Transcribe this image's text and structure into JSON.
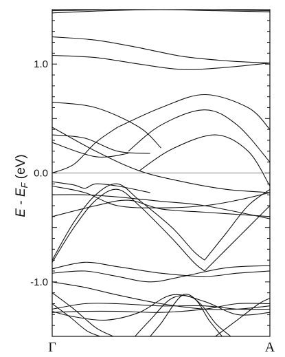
{
  "chart_data": {
    "type": "line",
    "ylabel_parts": {
      "E": "E",
      "minus": " - ",
      "EF_base": "E",
      "EF_sub": "F",
      "unit": " (eV)"
    },
    "xlim": [
      0,
      1
    ],
    "ylim": [
      -1.5,
      1.5
    ],
    "yticks": [
      {
        "value": 1.0,
        "label": "1.0"
      },
      {
        "value": 0.0,
        "label": "0.0"
      },
      {
        "value": -1.0,
        "label": "-1.0"
      }
    ],
    "xticks": [
      {
        "value": 0,
        "label": "Γ"
      },
      {
        "value": 1,
        "label": "A"
      }
    ],
    "fermi_level": 0.0,
    "series": [
      {
        "x": [
          0,
          0.25,
          0.5,
          0.75,
          1
        ],
        "y": [
          1.47,
          1.49,
          1.5,
          1.49,
          1.48
        ]
      },
      {
        "x": [
          0,
          0.25,
          0.5,
          0.75,
          1
        ],
        "y": [
          1.49,
          1.5,
          1.52,
          1.5,
          1.49
        ]
      },
      {
        "x": [
          0,
          0.2,
          0.4,
          0.6,
          0.8,
          1
        ],
        "y": [
          1.25,
          1.22,
          1.15,
          1.07,
          1.03,
          1.01
        ]
      },
      {
        "x": [
          0,
          0.2,
          0.4,
          0.6,
          0.8,
          1
        ],
        "y": [
          1.08,
          1.06,
          1.0,
          0.95,
          0.97,
          1.01
        ]
      },
      {
        "x": [
          0,
          0.2,
          0.4,
          0.5
        ],
        "y": [
          0.65,
          0.6,
          0.42,
          0.23
        ]
      },
      {
        "x": [
          0,
          0.2,
          0.4,
          0.6,
          0.8,
          1
        ],
        "y": [
          0.42,
          0.2,
          0.02,
          -0.08,
          -0.15,
          -0.18
        ]
      },
      {
        "x": [
          0,
          0.15,
          0.3,
          0.45
        ],
        "y": [
          0.35,
          0.32,
          0.2,
          0.18
        ]
      },
      {
        "x": [
          0,
          0.2,
          0.35
        ],
        "y": [
          0.28,
          0.15,
          0.18
        ]
      },
      {
        "x": [
          0,
          0.1,
          0.2,
          0.3
        ],
        "y": [
          0.0,
          0.08,
          0.28,
          0.42
        ]
      },
      {
        "x": [
          0.3,
          0.5,
          0.7,
          0.9,
          1
        ],
        "y": [
          0.42,
          0.6,
          0.72,
          0.6,
          0.4
        ]
      },
      {
        "x": [
          0.35,
          0.5,
          0.7,
          0.85,
          1
        ],
        "y": [
          0.2,
          0.44,
          0.58,
          0.44,
          0.1
        ]
      },
      {
        "x": [
          0.4,
          0.55,
          0.75,
          0.9,
          1
        ],
        "y": [
          0.02,
          0.22,
          0.35,
          0.2,
          -0.12
        ]
      },
      {
        "x": [
          0,
          0.1,
          0.15,
          0.2,
          0.3,
          0.45
        ],
        "y": [
          -0.08,
          -0.11,
          -0.14,
          -0.1,
          -0.12,
          -0.18
        ]
      },
      {
        "x": [
          0,
          0.15,
          0.3,
          0.5,
          0.7,
          0.85,
          1
        ],
        "y": [
          -0.12,
          -0.18,
          -0.3,
          -0.32,
          -0.3,
          -0.25,
          -0.18
        ]
      },
      {
        "x": [
          0,
          0.15,
          0.3,
          0.5,
          0.7,
          1
        ],
        "y": [
          -0.2,
          -0.2,
          -0.22,
          -0.26,
          -0.3,
          -0.42
        ]
      },
      {
        "x": [
          0,
          0.2,
          0.35,
          0.5,
          0.7,
          0.85,
          1
        ],
        "y": [
          -0.4,
          -0.3,
          -0.25,
          -0.33,
          -0.36,
          -0.38,
          -0.4
        ]
      },
      {
        "x": [
          0,
          0.1,
          0.2,
          0.3,
          0.4,
          0.55,
          0.65,
          0.7
        ],
        "y": [
          -0.8,
          -0.45,
          -0.2,
          -0.1,
          -0.25,
          -0.5,
          -0.72,
          -0.8
        ]
      },
      {
        "x": [
          0.7,
          0.8,
          0.9,
          1
        ],
        "y": [
          -0.8,
          -0.55,
          -0.3,
          -0.15
        ]
      },
      {
        "x": [
          0,
          0.1,
          0.2,
          0.3,
          0.4,
          0.55,
          0.65,
          0.7
        ],
        "y": [
          -0.82,
          -0.5,
          -0.25,
          -0.15,
          -0.3,
          -0.6,
          -0.82,
          -0.9
        ]
      },
      {
        "x": [
          0.7,
          0.8,
          0.9,
          1
        ],
        "y": [
          -0.9,
          -0.7,
          -0.5,
          -0.3
        ]
      },
      {
        "x": [
          0,
          0.15,
          0.3,
          0.5,
          0.7,
          0.85,
          1
        ],
        "y": [
          -0.88,
          -0.82,
          -0.86,
          -0.92,
          -0.95,
          -0.92,
          -0.9
        ]
      },
      {
        "x": [
          0,
          0.15,
          0.3,
          0.45,
          0.6,
          0.8,
          1
        ],
        "y": [
          -0.92,
          -0.9,
          -0.95,
          -1.0,
          -0.95,
          -0.87,
          -0.85
        ]
      },
      {
        "x": [
          0,
          0.15,
          0.3,
          0.5,
          0.7,
          0.85,
          1
        ],
        "y": [
          -1.0,
          -1.05,
          -1.12,
          -1.2,
          -1.25,
          -1.25,
          -1.22
        ]
      },
      {
        "x": [
          0,
          0.15,
          0.3,
          0.5,
          0.7,
          0.85,
          1
        ],
        "y": [
          -1.25,
          -1.2,
          -1.2,
          -1.22,
          -1.22,
          -1.25,
          -1.25
        ]
      },
      {
        "x": [
          0,
          0.15,
          0.3,
          0.5,
          0.7,
          0.85,
          1
        ],
        "y": [
          -1.28,
          -1.27,
          -1.27,
          -1.28,
          -1.25,
          -1.2,
          -1.2
        ]
      },
      {
        "x": [
          0,
          0.1,
          0.25,
          0.4,
          0.55,
          0.7,
          0.85,
          1
        ],
        "y": [
          -1.27,
          -1.32,
          -1.35,
          -1.28,
          -1.12,
          -1.18,
          -1.3,
          -1.28
        ]
      },
      {
        "x": [
          0,
          0.1,
          0.2,
          0.28
        ],
        "y": [
          -1.1,
          -1.25,
          -1.42,
          -1.5
        ]
      },
      {
        "x": [
          0,
          0.08,
          0.16,
          0.22
        ],
        "y": [
          -1.2,
          -1.32,
          -1.45,
          -1.5
        ]
      },
      {
        "x": [
          0.38,
          0.45,
          0.55,
          0.65,
          0.72,
          0.78
        ],
        "y": [
          -1.5,
          -1.35,
          -1.15,
          -1.15,
          -1.35,
          -1.5
        ]
      },
      {
        "x": [
          0.45,
          0.5,
          0.6,
          0.68,
          0.75,
          0.82
        ],
        "y": [
          -1.5,
          -1.38,
          -1.12,
          -1.2,
          -1.38,
          -1.5
        ]
      },
      {
        "x": [
          0.75,
          0.85,
          0.95,
          1
        ],
        "y": [
          -1.5,
          -1.35,
          -1.2,
          -1.15
        ]
      }
    ]
  }
}
